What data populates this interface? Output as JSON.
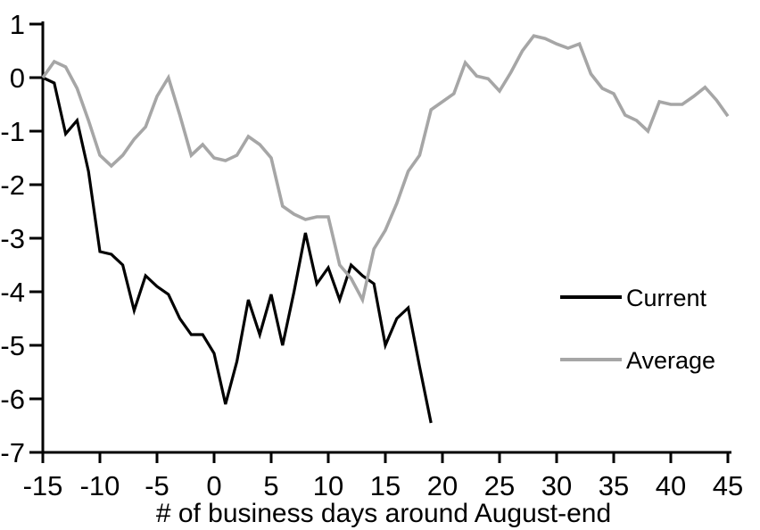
{
  "chart_data": {
    "type": "line",
    "title": "",
    "xlabel": "# of business days around August-end",
    "ylabel": "",
    "xlim": [
      -15,
      45
    ],
    "ylim": [
      -7,
      1
    ],
    "x_ticks": [
      -15,
      -10,
      -5,
      0,
      5,
      10,
      15,
      20,
      25,
      30,
      35,
      40,
      45
    ],
    "y_ticks": [
      1,
      0,
      -1,
      -2,
      -3,
      -4,
      -5,
      -6,
      -7
    ],
    "grid": false,
    "legend_position": "middle-right",
    "axis_color": "#000000",
    "background": "#ffffff",
    "series": [
      {
        "name": "Current",
        "color": "#000000",
        "line_width": 3.2,
        "x": [
          -15,
          -14,
          -13,
          -12,
          -11,
          -10,
          -9,
          -8,
          -7,
          -6,
          -5,
          -4,
          -3,
          -2,
          -1,
          0,
          1,
          2,
          3,
          4,
          5,
          6,
          7,
          8,
          9,
          10,
          11,
          12,
          13,
          14,
          15,
          16,
          17,
          18,
          19
        ],
        "values": [
          0,
          -0.1,
          -1.05,
          -0.8,
          -1.75,
          -3.25,
          -3.3,
          -3.5,
          -4.35,
          -3.7,
          -3.9,
          -4.05,
          -4.5,
          -4.8,
          -4.8,
          -5.15,
          -6.1,
          -5.3,
          -4.15,
          -4.8,
          -4.05,
          -5.0,
          -4.0,
          -2.9,
          -3.85,
          -3.55,
          -4.15,
          -3.5,
          -3.7,
          -3.85,
          -5.0,
          -4.5,
          -4.3,
          -5.4,
          -6.45
        ]
      },
      {
        "name": "Average",
        "color": "#a6a6a6",
        "line_width": 3.6,
        "x": [
          -15,
          -14,
          -13,
          -12,
          -11,
          -10,
          -9,
          -8,
          -7,
          -6,
          -5,
          -4,
          -3,
          -2,
          -1,
          0,
          1,
          2,
          3,
          4,
          5,
          6,
          7,
          8,
          9,
          10,
          11,
          12,
          13,
          14,
          15,
          16,
          17,
          18,
          19,
          20,
          21,
          22,
          23,
          24,
          25,
          26,
          27,
          28,
          29,
          30,
          31,
          32,
          33,
          34,
          35,
          36,
          37,
          38,
          39,
          40,
          41,
          42,
          43,
          44,
          45
        ],
        "values": [
          0,
          0.3,
          0.2,
          -0.2,
          -0.8,
          -1.45,
          -1.65,
          -1.45,
          -1.15,
          -0.92,
          -0.35,
          0,
          -0.7,
          -1.45,
          -1.25,
          -1.5,
          -1.55,
          -1.45,
          -1.1,
          -1.25,
          -1.5,
          -2.4,
          -2.55,
          -2.65,
          -2.6,
          -2.6,
          -3.5,
          -3.75,
          -4.15,
          -3.2,
          -2.85,
          -2.35,
          -1.75,
          -1.45,
          -0.6,
          -0.45,
          -0.3,
          0.28,
          0.03,
          -0.02,
          -0.25,
          0.1,
          0.5,
          0.78,
          0.73,
          0.63,
          0.55,
          0.63,
          0.07,
          -0.2,
          -0.3,
          -0.7,
          -0.8,
          -1.0,
          -0.45,
          -0.5,
          -0.5,
          -0.35,
          -0.18,
          -0.42,
          -0.72
        ]
      }
    ]
  }
}
